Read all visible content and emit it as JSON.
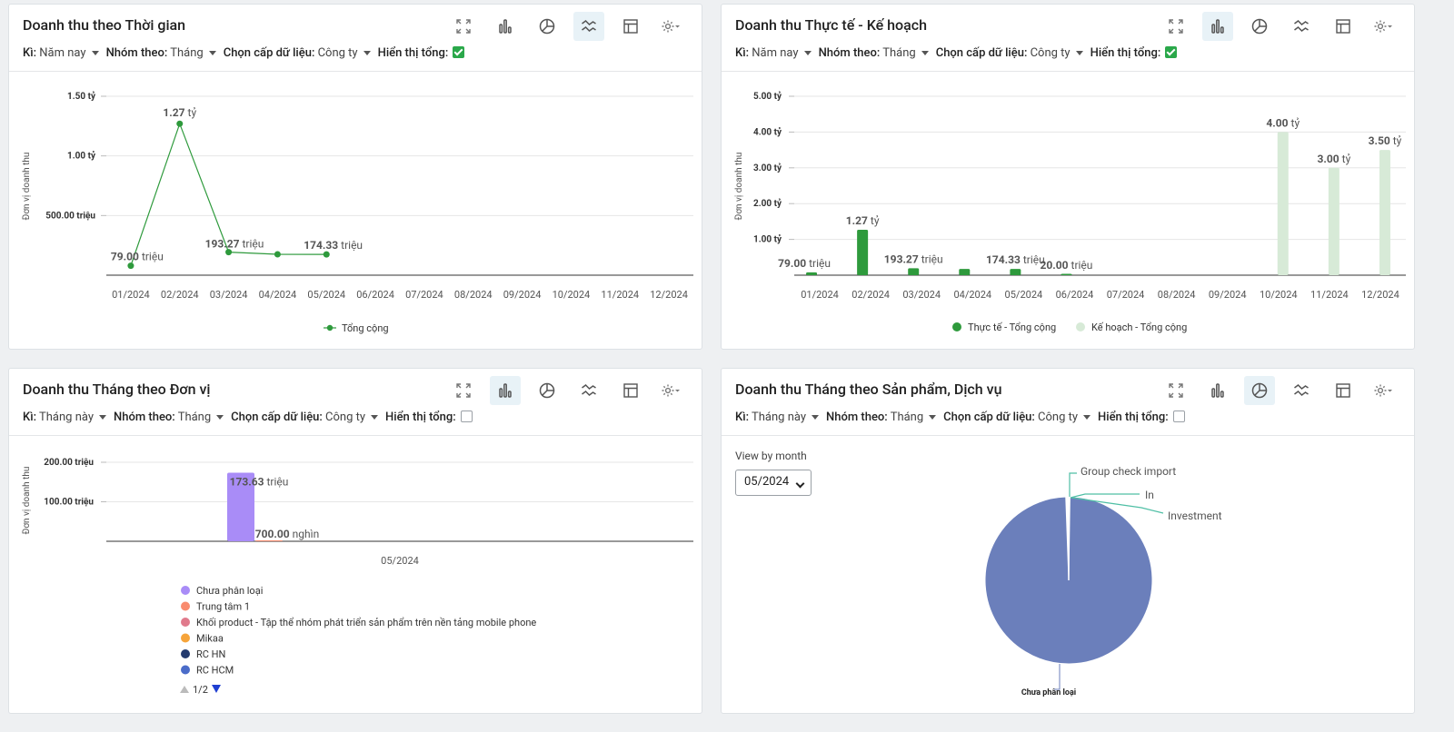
{
  "filter_labels": {
    "period": "Kì:",
    "group": "Nhóm theo:",
    "level": "Chọn cấp dữ liệu:",
    "show_total": "Hiển thị tổng:"
  },
  "colors": {
    "green": "#2e9a3c",
    "light_green": "#d7ead7",
    "purple": "#a98cf7",
    "pie": "#6b7fbb",
    "teal": "#4fbfa5"
  },
  "cards": [
    {
      "title": "Doanh thu theo Thời gian",
      "filters": {
        "period": "Năm nay",
        "group": "Tháng",
        "level": "Công ty",
        "show_total": true
      },
      "active_view": "line"
    },
    {
      "title": "Doanh thu Thực tế - Kế hoạch",
      "filters": {
        "period": "Năm nay",
        "group": "Tháng",
        "level": "Công ty",
        "show_total": true
      },
      "active_view": "bar"
    },
    {
      "title": "Doanh thu Tháng theo Đơn vị",
      "filters": {
        "period": "Tháng này",
        "group": "Tháng",
        "level": "Công ty",
        "show_total": false
      },
      "active_view": "bar"
    },
    {
      "title": "Doanh thu Tháng theo Sản phẩm, Dịch vụ",
      "filters": {
        "period": "Tháng này",
        "group": "Tháng",
        "level": "Công ty",
        "show_total": false
      },
      "active_view": "pie",
      "view_by_label": "View by month",
      "selected_month": "05/2024"
    }
  ],
  "chart_data": [
    {
      "type": "line",
      "ylabel": "Đơn vị doanh thu",
      "ylim": [
        0,
        1.5
      ],
      "y_unit": "tỷ",
      "y_ticks": [
        {
          "v": 0.5,
          "label": "500.00 triệu"
        },
        {
          "v": 1.0,
          "label": "1.00 tỷ"
        },
        {
          "v": 1.5,
          "label": "1.50 tỷ"
        }
      ],
      "categories": [
        "01/2024",
        "02/2024",
        "03/2024",
        "04/2024",
        "05/2024",
        "06/2024",
        "07/2024",
        "08/2024",
        "09/2024",
        "10/2024",
        "11/2024",
        "12/2024"
      ],
      "series": [
        {
          "name": "Tổng cộng",
          "values": [
            0.079,
            1.27,
            0.19327,
            0.175,
            0.17433,
            null,
            null,
            null,
            null,
            null,
            null,
            null
          ],
          "labels": [
            {
              "num": "79.00",
              "unit": "triệu"
            },
            {
              "num": "1.27",
              "unit": "tỷ"
            },
            {
              "num": "193.27",
              "unit": "triệu"
            },
            null,
            {
              "num": "174.33",
              "unit": "triệu"
            },
            null,
            null,
            null,
            null,
            null,
            null,
            null
          ]
        }
      ],
      "legend": "bottom"
    },
    {
      "type": "bar",
      "ylabel": "Đơn vị doanh thu",
      "ylim": [
        0,
        5
      ],
      "y_ticks": [
        {
          "v": 1,
          "label": "1.00 tỷ"
        },
        {
          "v": 2,
          "label": "2.00 tỷ"
        },
        {
          "v": 3,
          "label": "3.00 tỷ"
        },
        {
          "v": 4,
          "label": "4.00 tỷ"
        },
        {
          "v": 5,
          "label": "5.00 tỷ"
        }
      ],
      "categories": [
        "01/2024",
        "02/2024",
        "03/2024",
        "04/2024",
        "05/2024",
        "06/2024",
        "07/2024",
        "08/2024",
        "09/2024",
        "10/2024",
        "11/2024",
        "12/2024"
      ],
      "series": [
        {
          "name": "Thực tế - Tổng cộng",
          "values": [
            0.079,
            1.27,
            0.19327,
            0.175,
            0.17433,
            0.02,
            0,
            0,
            0,
            0,
            0,
            0
          ],
          "labels": [
            {
              "num": "79.00",
              "unit": "triệu"
            },
            {
              "num": "1.27",
              "unit": "tỷ"
            },
            {
              "num": "193.27",
              "unit": "triệu"
            },
            null,
            {
              "num": "174.33",
              "unit": "triệu"
            },
            {
              "num": "20.00",
              "unit": "triệu"
            },
            null,
            null,
            null,
            null,
            null,
            null
          ]
        },
        {
          "name": "Kế hoạch - Tổng cộng",
          "values": [
            0,
            0,
            0,
            0,
            0,
            0,
            0,
            0,
            0,
            4.0,
            3.0,
            3.5
          ],
          "labels": [
            null,
            null,
            null,
            null,
            null,
            null,
            null,
            null,
            null,
            {
              "num": "4.00",
              "unit": "tỷ"
            },
            {
              "num": "3.00",
              "unit": "tỷ"
            },
            {
              "num": "3.50",
              "unit": "tỷ"
            }
          ]
        }
      ],
      "legend": "bottom"
    },
    {
      "type": "bar",
      "ylabel": "Đơn vị doanh thu",
      "ylim": [
        0,
        200
      ],
      "y_ticks": [
        {
          "v": 100,
          "label": "100.00 triệu"
        },
        {
          "v": 200,
          "label": "200.00 triệu"
        }
      ],
      "categories": [
        "05/2024"
      ],
      "series": [
        {
          "name": "Chưa phân loại",
          "color": "#a98cf7",
          "values": [
            173.63
          ],
          "label": {
            "num": "173.63",
            "unit": "triệu"
          }
        },
        {
          "name": "Trung tâm 1",
          "color": "#f98b6e",
          "values": [
            0.7
          ],
          "label": {
            "num": "700.00",
            "unit": "nghìn"
          }
        },
        {
          "name": "Khối product - Tập thể nhóm phát triển sản phẩm trên nền tảng mobile phone",
          "color": "#e07a8c",
          "values": [
            0
          ]
        },
        {
          "name": "Mikaa",
          "color": "#f6a43a",
          "values": [
            0
          ]
        },
        {
          "name": "RC HN",
          "color": "#233a6e",
          "values": [
            0
          ]
        },
        {
          "name": "RC HCM",
          "color": "#4b6cc9",
          "values": [
            0
          ]
        }
      ],
      "legend": "bottom-left",
      "legend_page": "1/2"
    },
    {
      "type": "pie",
      "slices": [
        {
          "name": "Chưa phân loại",
          "value": 99.2,
          "color": "#6b7fbb"
        },
        {
          "name": "Group check import",
          "value": 0.3,
          "color": "#4fbfa5"
        },
        {
          "name": "In",
          "value": 0.25,
          "color": "#4fbfa5"
        },
        {
          "name": "Investment",
          "value": 0.25,
          "color": "#4fbfa5"
        }
      ]
    }
  ]
}
